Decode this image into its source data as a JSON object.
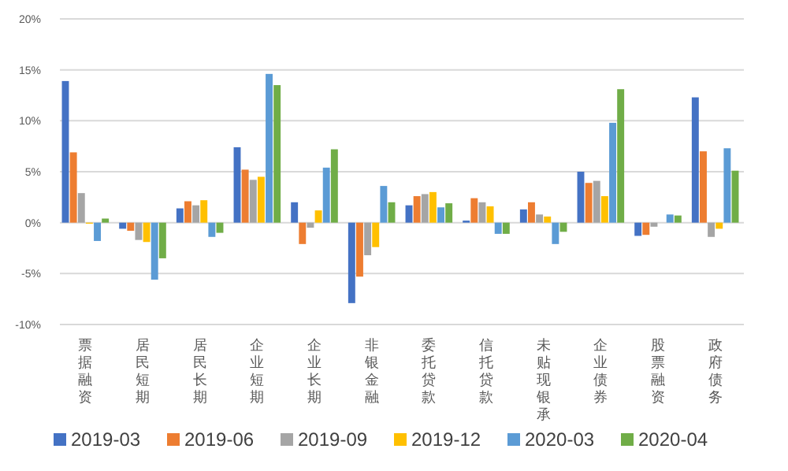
{
  "chart_data": {
    "type": "bar",
    "categories": [
      "票据融资",
      "居民短期",
      "居民长期",
      "企业短期",
      "企业长期",
      "非银金融",
      "委托贷款",
      "信托贷款",
      "未贴现银承",
      "企业债券",
      "股票融资",
      "政府债务"
    ],
    "series": [
      {
        "name": "2019-03",
        "color": "#4472c4",
        "values": [
          13.9,
          -0.6,
          1.4,
          7.4,
          2.0,
          -7.9,
          1.7,
          0.2,
          1.3,
          5.0,
          -1.3,
          12.3
        ]
      },
      {
        "name": "2019-06",
        "color": "#ed7d31",
        "values": [
          6.9,
          -0.8,
          2.1,
          5.2,
          -2.1,
          -5.3,
          2.6,
          2.4,
          2.0,
          3.9,
          -1.2,
          7.0
        ]
      },
      {
        "name": "2019-09",
        "color": "#a5a5a5",
        "values": [
          2.9,
          -1.7,
          1.7,
          4.2,
          -0.5,
          -3.2,
          2.8,
          2.0,
          0.8,
          4.1,
          -0.4,
          -1.4
        ]
      },
      {
        "name": "2019-12",
        "color": "#ffc000",
        "values": [
          -0.1,
          -1.9,
          2.2,
          4.5,
          1.2,
          -2.4,
          3.0,
          1.6,
          0.6,
          2.6,
          0,
          -0.6
        ]
      },
      {
        "name": "2020-03",
        "color": "#5b9bd5",
        "values": [
          -1.8,
          -5.6,
          -1.4,
          14.6,
          5.4,
          3.6,
          1.5,
          -1.1,
          -2.1,
          9.8,
          0.8,
          7.3
        ]
      },
      {
        "name": "2020-04",
        "color": "#70ad47",
        "values": [
          0.4,
          -3.5,
          -1.0,
          13.5,
          7.2,
          2.0,
          1.9,
          -1.1,
          -0.9,
          13.1,
          0.7,
          5.1
        ]
      }
    ],
    "ylim": [
      -10,
      20
    ],
    "yticks": [
      {
        "value": -10,
        "label": "-10%"
      },
      {
        "value": -5,
        "label": "-5%"
      },
      {
        "value": 0,
        "label": "0%"
      },
      {
        "value": 5,
        "label": "5%"
      },
      {
        "value": 10,
        "label": "10%"
      },
      {
        "value": 15,
        "label": "15%"
      },
      {
        "value": 20,
        "label": "20%"
      }
    ],
    "grid": "y",
    "legend": "bottom"
  }
}
